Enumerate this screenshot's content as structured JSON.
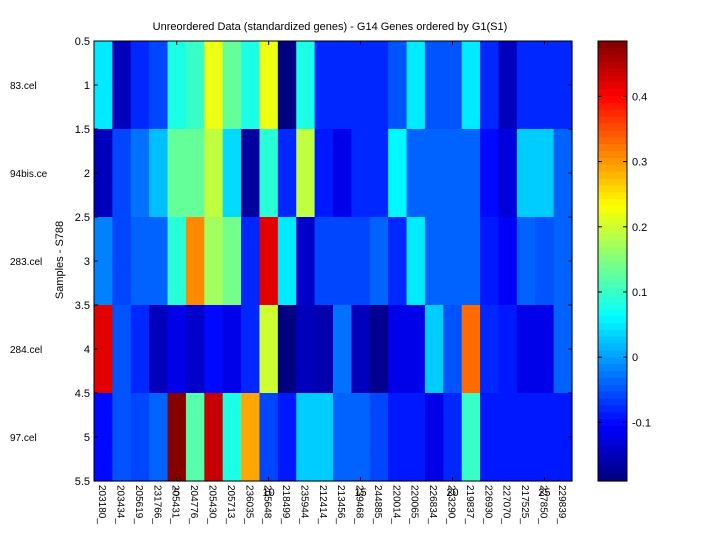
{
  "chart_data": {
    "type": "heatmap",
    "title": "Unreordered Data (standardized genes) - G14 Genes ordered by G1(S1)",
    "ylabel": "Samples - S788",
    "xlabel": "",
    "rows": [
      "83.cel",
      "94bis.ce",
      "283.cel",
      "284.cel",
      "97.cel"
    ],
    "columns": [
      "203180_",
      "203434_",
      "205619_",
      "231766_",
      "205431_",
      "204776_",
      "205430_",
      "205713_",
      "236035_",
      "205648_",
      "218499_",
      "235944_",
      "212414_",
      "213456_",
      "239468_",
      "244885_",
      "220014_",
      "220065_",
      "226834_",
      "223290_",
      "219837_",
      "226930_",
      "227070_",
      "217525_",
      "227850_",
      "229839_"
    ],
    "x_ticks": [
      "5",
      "10",
      "15",
      "20",
      "25"
    ],
    "y_ticks": [
      "0.5",
      "1",
      "1.5",
      "2",
      "2.5",
      "3",
      "3.5",
      "4",
      "4.5",
      "5",
      "5.5"
    ],
    "ylim": [
      0.5,
      5.5
    ],
    "colormap": "jet",
    "color_range": [
      -0.19,
      0.485
    ],
    "colorbar_ticks": [
      "-0.1",
      "0",
      "0.1",
      "0.2",
      "0.3",
      "0.4"
    ],
    "values": [
      [
        0.05,
        -0.15,
        -0.08,
        -0.06,
        0.08,
        0.1,
        0.22,
        0.13,
        0.08,
        0.22,
        -0.19,
        0.08,
        -0.08,
        -0.08,
        -0.08,
        -0.08,
        -0.05,
        0.05,
        -0.05,
        -0.05,
        0.05,
        -0.08,
        -0.15,
        -0.08,
        -0.08,
        -0.08
      ],
      [
        -0.15,
        -0.06,
        -0.03,
        0.02,
        0.13,
        0.13,
        0.19,
        0.04,
        -0.17,
        0.09,
        -0.08,
        0.19,
        -0.09,
        -0.12,
        -0.08,
        -0.08,
        0.06,
        -0.04,
        -0.04,
        -0.04,
        -0.04,
        -0.1,
        -0.13,
        0.03,
        0.03,
        -0.04
      ],
      [
        -0.02,
        -0.06,
        -0.04,
        -0.04,
        0.09,
        0.31,
        0.17,
        0.14,
        -0.08,
        0.42,
        0.05,
        -0.14,
        -0.06,
        -0.06,
        -0.06,
        -0.04,
        -0.08,
        0.05,
        -0.04,
        -0.04,
        -0.04,
        -0.09,
        -0.11,
        -0.04,
        -0.05,
        -0.04
      ],
      [
        0.42,
        -0.05,
        -0.08,
        -0.15,
        -0.12,
        -0.14,
        -0.1,
        -0.12,
        -0.08,
        0.2,
        -0.19,
        -0.15,
        -0.16,
        -0.03,
        -0.15,
        -0.18,
        -0.12,
        -0.12,
        0.03,
        -0.05,
        0.33,
        -0.08,
        -0.09,
        -0.12,
        -0.12,
        -0.04
      ],
      [
        -0.1,
        -0.05,
        -0.06,
        -0.04,
        0.48,
        0.12,
        0.44,
        0.08,
        0.29,
        -0.06,
        -0.09,
        0.03,
        0.03,
        -0.04,
        -0.04,
        -0.06,
        -0.09,
        -0.09,
        -0.12,
        -0.08,
        0.1,
        -0.09,
        -0.09,
        -0.09,
        -0.09,
        -0.09
      ]
    ]
  }
}
